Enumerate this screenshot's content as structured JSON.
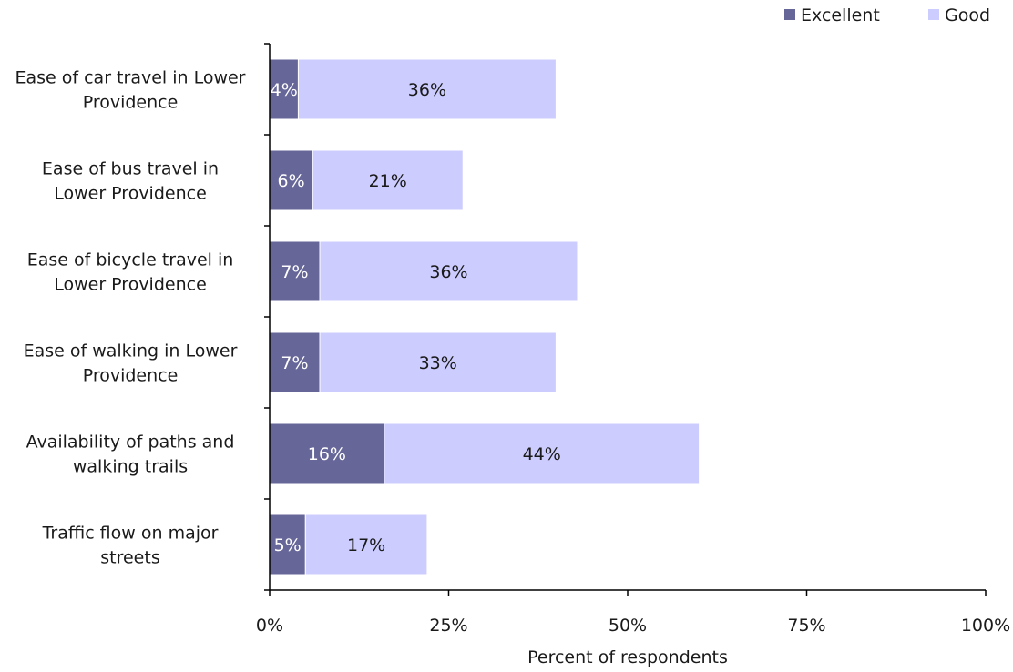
{
  "chart_data": {
    "type": "bar",
    "orientation": "horizontal",
    "stacked": true,
    "categories": [
      [
        "Ease of car travel in Lower",
        "Providence"
      ],
      [
        "Ease of bus travel in",
        "Lower Providence"
      ],
      [
        "Ease of bicycle travel in",
        "Lower Providence"
      ],
      [
        "Ease of walking in Lower",
        "Providence"
      ],
      [
        "Availability of paths and",
        "walking trails"
      ],
      [
        "Traffic flow on major",
        "streets"
      ]
    ],
    "series": [
      {
        "name": "Excellent",
        "color": "#666699",
        "label_color": "#ffffff",
        "values": [
          4,
          6,
          7,
          7,
          16,
          5
        ],
        "labels": [
          "4%",
          "6%",
          "7%",
          "7%",
          "16%",
          "5%"
        ]
      },
      {
        "name": "Good",
        "color": "#ccccff",
        "label_color": "#1a1a1a",
        "values": [
          36,
          21,
          36,
          33,
          44,
          17
        ],
        "labels": [
          "36%",
          "21%",
          "36%",
          "33%",
          "44%",
          "17%"
        ]
      }
    ],
    "x_ticks": [
      0,
      25,
      50,
      75,
      100
    ],
    "x_tick_labels": [
      "0%",
      "25%",
      "50%",
      "75%",
      "100%"
    ],
    "xlim": [
      0,
      100
    ],
    "xlabel": "Percent of respondents",
    "ylabel": "",
    "title": "",
    "legend_position": "top-right",
    "grid": false
  }
}
